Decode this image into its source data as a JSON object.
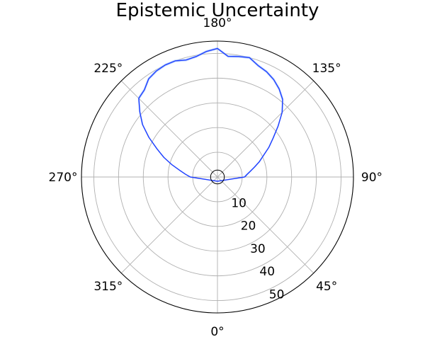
{
  "chart_data": {
    "type": "line",
    "projection": "polar",
    "title": "Epistemic Uncertainty",
    "theta_zero_location": "bottom",
    "theta_direction": "counterclockwise",
    "angle_ticks": [
      {
        "deg": 0,
        "label": "0°"
      },
      {
        "deg": 45,
        "label": "45°"
      },
      {
        "deg": 90,
        "label": "90°"
      },
      {
        "deg": 135,
        "label": "135°"
      },
      {
        "deg": 180,
        "label": "180°"
      },
      {
        "deg": 225,
        "label": "225°"
      },
      {
        "deg": 270,
        "label": "270°"
      },
      {
        "deg": 315,
        "label": "315°"
      }
    ],
    "radial_ticks": [
      {
        "value": 10,
        "label": "10"
      },
      {
        "value": 20,
        "label": "20"
      },
      {
        "value": 30,
        "label": "30"
      },
      {
        "value": 40,
        "label": "40"
      },
      {
        "value": 50,
        "label": "50"
      }
    ],
    "rlim": [
      0,
      55
    ],
    "grid": true,
    "series": [
      {
        "color": "#1f3fff",
        "band_color": "#9fc3ff",
        "theta_deg": [
          90,
          95,
          100,
          105,
          110,
          115,
          120,
          125,
          130,
          135,
          140,
          145,
          150,
          155,
          160,
          165,
          170,
          175,
          180,
          185,
          190,
          195,
          200,
          205,
          210,
          215,
          220,
          225,
          230,
          235,
          240,
          245,
          250,
          255,
          260,
          265,
          270
        ],
        "r": [
          11,
          12,
          13.5,
          15.5,
          18,
          20.5,
          24,
          27.5,
          32,
          37,
          41,
          43.5,
          45.5,
          47,
          48,
          50,
          49.5,
          49,
          52,
          51,
          49.5,
          49,
          50,
          50,
          49.5,
          48.5,
          46,
          45,
          41,
          37,
          32,
          27,
          23,
          19,
          15.5,
          13,
          11
        ],
        "lower": [
          10.5,
          11.5,
          13,
          15,
          17.5,
          20,
          23.5,
          27,
          31.5,
          36.5,
          40.5,
          43,
          45,
          46.5,
          47.5,
          49.5,
          49,
          48.5,
          51.5,
          50.5,
          49,
          48.5,
          49.5,
          49.5,
          49,
          48,
          45.5,
          44.5,
          40.5,
          36.5,
          31.5,
          26.5,
          22.5,
          18.5,
          15,
          12.5,
          10.5
        ],
        "upper": [
          11.5,
          12.5,
          14,
          16,
          18.5,
          21,
          24.5,
          28,
          32.5,
          37.5,
          41.5,
          44,
          46,
          47.5,
          48.5,
          50.5,
          50,
          49.5,
          52.5,
          51.5,
          50,
          49.5,
          50.5,
          50.5,
          50,
          49,
          46.5,
          45.5,
          41.5,
          37.5,
          32.5,
          27.5,
          23.5,
          19.5,
          16,
          13.5,
          11.5
        ]
      }
    ],
    "inner_circle": {
      "r": 2.5
    }
  }
}
